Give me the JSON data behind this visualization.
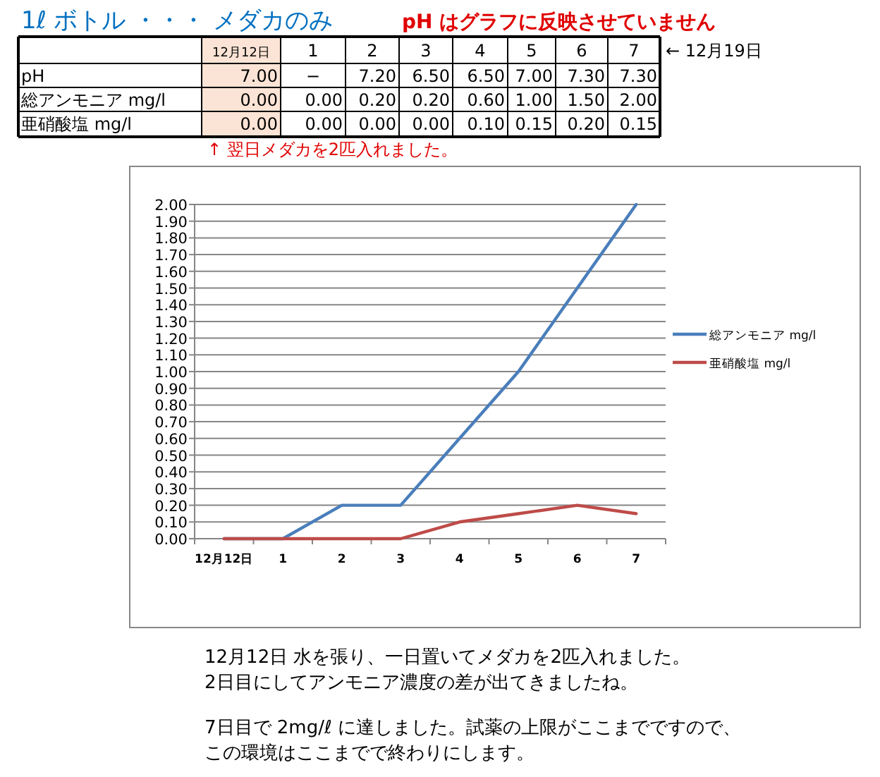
{
  "chart_data": {
    "type": "line",
    "title": "1ℓ ボトル ・・・ メダカのみ",
    "categories": [
      "12月12日",
      "1",
      "2",
      "3",
      "4",
      "5",
      "6",
      "7"
    ],
    "series": [
      {
        "name": "総アンモニア mg/l",
        "color": "#4a7ebb",
        "values": [
          0,
          0,
          0.2,
          0.2,
          0.6,
          1.0,
          1.5,
          2.0
        ]
      },
      {
        "name": "亜硝酸塩 mg/l",
        "color": "#be4b48",
        "values": [
          0,
          0,
          0,
          0,
          0.1,
          0.15,
          0.2,
          0.15
        ]
      }
    ],
    "ylim": [
      0,
      2
    ],
    "yticks": [
      {
        "value": 0,
        "label": "0.00"
      },
      {
        "value": 0.1,
        "label": "0.10"
      },
      {
        "value": 0.2,
        "label": "0.20"
      },
      {
        "value": 0.3,
        "label": "0.30"
      },
      {
        "value": 0.4,
        "label": "0.40"
      },
      {
        "value": 0.5,
        "label": "0.50"
      },
      {
        "value": 0.6,
        "label": "0.60"
      },
      {
        "value": 0.7,
        "label": "0.70"
      },
      {
        "value": 0.8,
        "label": "0.80"
      },
      {
        "value": 0.9,
        "label": "0.90"
      },
      {
        "value": 1,
        "label": "1.00"
      },
      {
        "value": 1.1,
        "label": "1.10"
      },
      {
        "value": 1.2,
        "label": "1.20"
      },
      {
        "value": 1.3,
        "label": "1.30"
      },
      {
        "value": 1.4,
        "label": "1.40"
      },
      {
        "value": 1.5,
        "label": "1.50"
      },
      {
        "value": 1.6,
        "label": "1.60"
      },
      {
        "value": 1.7,
        "label": "1.70"
      },
      {
        "value": 1.8,
        "label": "1.80"
      },
      {
        "value": 1.9,
        "label": "1.90"
      },
      {
        "value": 2,
        "label": "2.00"
      }
    ],
    "grid": "y",
    "legend": "right",
    "marker": "none",
    "annotations": [
      "pH はグラフに反映させていません",
      "← 12月19日",
      "↑ 翌日メダカを2匹入れました。",
      "12月12日 水を張り、一日置いてメダカを2匹入れました。",
      "2日目にしてアンモニア濃度の差が出てきましたね。",
      "7日目で 2mg/ℓ に達しました。試薬の上限がここまでですので、",
      "この環境はここまでで終わりにします。",
      "pH",
      "7.00",
      "−",
      "7.20",
      "6.50",
      "6.50",
      "7.00",
      "7.30",
      "7.30",
      "0.00",
      "0.00",
      "0.20",
      "0.20",
      "0.60",
      "1.00",
      "1.50",
      "2.00",
      "0.00",
      "0.00",
      "0.00",
      "0.00",
      "0.10",
      "0.15",
      "0.20",
      "0.15"
    ]
  }
}
